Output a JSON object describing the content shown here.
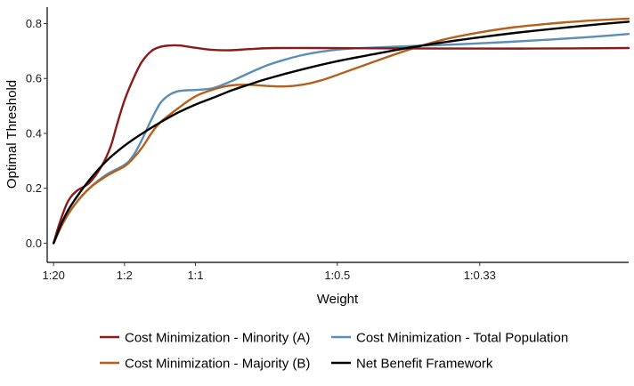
{
  "chart_data": {
    "type": "line",
    "xlabel": "Weight",
    "ylabel": "Optimal Threshold",
    "xlim": [
      -0.01,
      0.9
    ],
    "ylim": [
      -0.07,
      0.86
    ],
    "x_ticks": [
      {
        "value": 0.0,
        "label": "1:20"
      },
      {
        "value": 0.111,
        "label": "1:2"
      },
      {
        "value": 0.222,
        "label": "1:1"
      },
      {
        "value": 0.444,
        "label": "1:0.5"
      },
      {
        "value": 0.667,
        "label": "1:0.33"
      }
    ],
    "y_ticks": [
      {
        "value": 0.0,
        "label": "0.0"
      },
      {
        "value": 0.2,
        "label": "0.2"
      },
      {
        "value": 0.4,
        "label": "0.4"
      },
      {
        "value": 0.6,
        "label": "0.6"
      },
      {
        "value": 0.8,
        "label": "0.8"
      }
    ],
    "grid": false,
    "legend_position": "bottom",
    "series": [
      {
        "name": "Cost Minimization - Minority (A)",
        "color": "#8b1a1a",
        "x": [
          0,
          0.009,
          0.022,
          0.036,
          0.056,
          0.075,
          0.089,
          0.099,
          0.111,
          0.125,
          0.138,
          0.153,
          0.167,
          0.181,
          0.198,
          0.222,
          0.25,
          0.278,
          0.306,
          0.347,
          0.417,
          0.5,
          0.611,
          0.75,
          0.9
        ],
        "y": [
          0.0,
          0.07,
          0.15,
          0.19,
          0.22,
          0.28,
          0.35,
          0.43,
          0.52,
          0.6,
          0.66,
          0.7,
          0.715,
          0.72,
          0.72,
          0.712,
          0.704,
          0.703,
          0.707,
          0.711,
          0.711,
          0.71,
          0.709,
          0.709,
          0.711
        ]
      },
      {
        "name": "Cost Minimization - Total Population",
        "color": "#5b8db5",
        "x": [
          0,
          0.014,
          0.033,
          0.056,
          0.083,
          0.111,
          0.125,
          0.139,
          0.153,
          0.167,
          0.181,
          0.194,
          0.208,
          0.222,
          0.25,
          0.278,
          0.306,
          0.333,
          0.361,
          0.389,
          0.417,
          0.444,
          0.472,
          0.528,
          0.583,
          0.667,
          0.75,
          0.833,
          0.9
        ],
        "y": [
          0.0,
          0.07,
          0.14,
          0.2,
          0.25,
          0.285,
          0.32,
          0.38,
          0.45,
          0.51,
          0.54,
          0.553,
          0.557,
          0.558,
          0.565,
          0.59,
          0.62,
          0.647,
          0.668,
          0.685,
          0.697,
          0.705,
          0.71,
          0.715,
          0.72,
          0.728,
          0.738,
          0.75,
          0.762
        ]
      },
      {
        "name": "Cost Minimization - Majority (B)",
        "color": "#b5601c",
        "x": [
          0,
          0.014,
          0.033,
          0.056,
          0.083,
          0.111,
          0.125,
          0.139,
          0.153,
          0.167,
          0.194,
          0.222,
          0.25,
          0.278,
          0.306,
          0.333,
          0.361,
          0.389,
          0.417,
          0.444,
          0.5,
          0.556,
          0.611,
          0.667,
          0.722,
          0.778,
          0.833,
          0.9
        ],
        "y": [
          0.0,
          0.07,
          0.14,
          0.2,
          0.245,
          0.28,
          0.31,
          0.35,
          0.4,
          0.44,
          0.49,
          0.535,
          0.56,
          0.575,
          0.577,
          0.573,
          0.571,
          0.577,
          0.592,
          0.613,
          0.66,
          0.705,
          0.742,
          0.768,
          0.787,
          0.8,
          0.81,
          0.818
        ]
      },
      {
        "name": "Net Benefit Framework",
        "color": "#000000",
        "x": [
          0,
          0.014,
          0.028,
          0.056,
          0.083,
          0.111,
          0.139,
          0.167,
          0.194,
          0.222,
          0.25,
          0.278,
          0.306,
          0.333,
          0.389,
          0.444,
          0.5,
          0.556,
          0.611,
          0.667,
          0.722,
          0.778,
          0.833,
          0.9
        ],
        "y": [
          0.0,
          0.08,
          0.14,
          0.23,
          0.3,
          0.355,
          0.4,
          0.44,
          0.475,
          0.505,
          0.53,
          0.556,
          0.578,
          0.598,
          0.633,
          0.663,
          0.688,
          0.712,
          0.732,
          0.75,
          0.766,
          0.78,
          0.793,
          0.807
        ]
      }
    ],
    "legend": [
      {
        "series": 0,
        "label": "Cost Minimization - Minority (A)"
      },
      {
        "series": 1,
        "label": "Cost Minimization - Total Population"
      },
      {
        "series": 2,
        "label": "Cost Minimization - Majority (B)"
      },
      {
        "series": 3,
        "label": "Net Benefit Framework"
      }
    ]
  }
}
